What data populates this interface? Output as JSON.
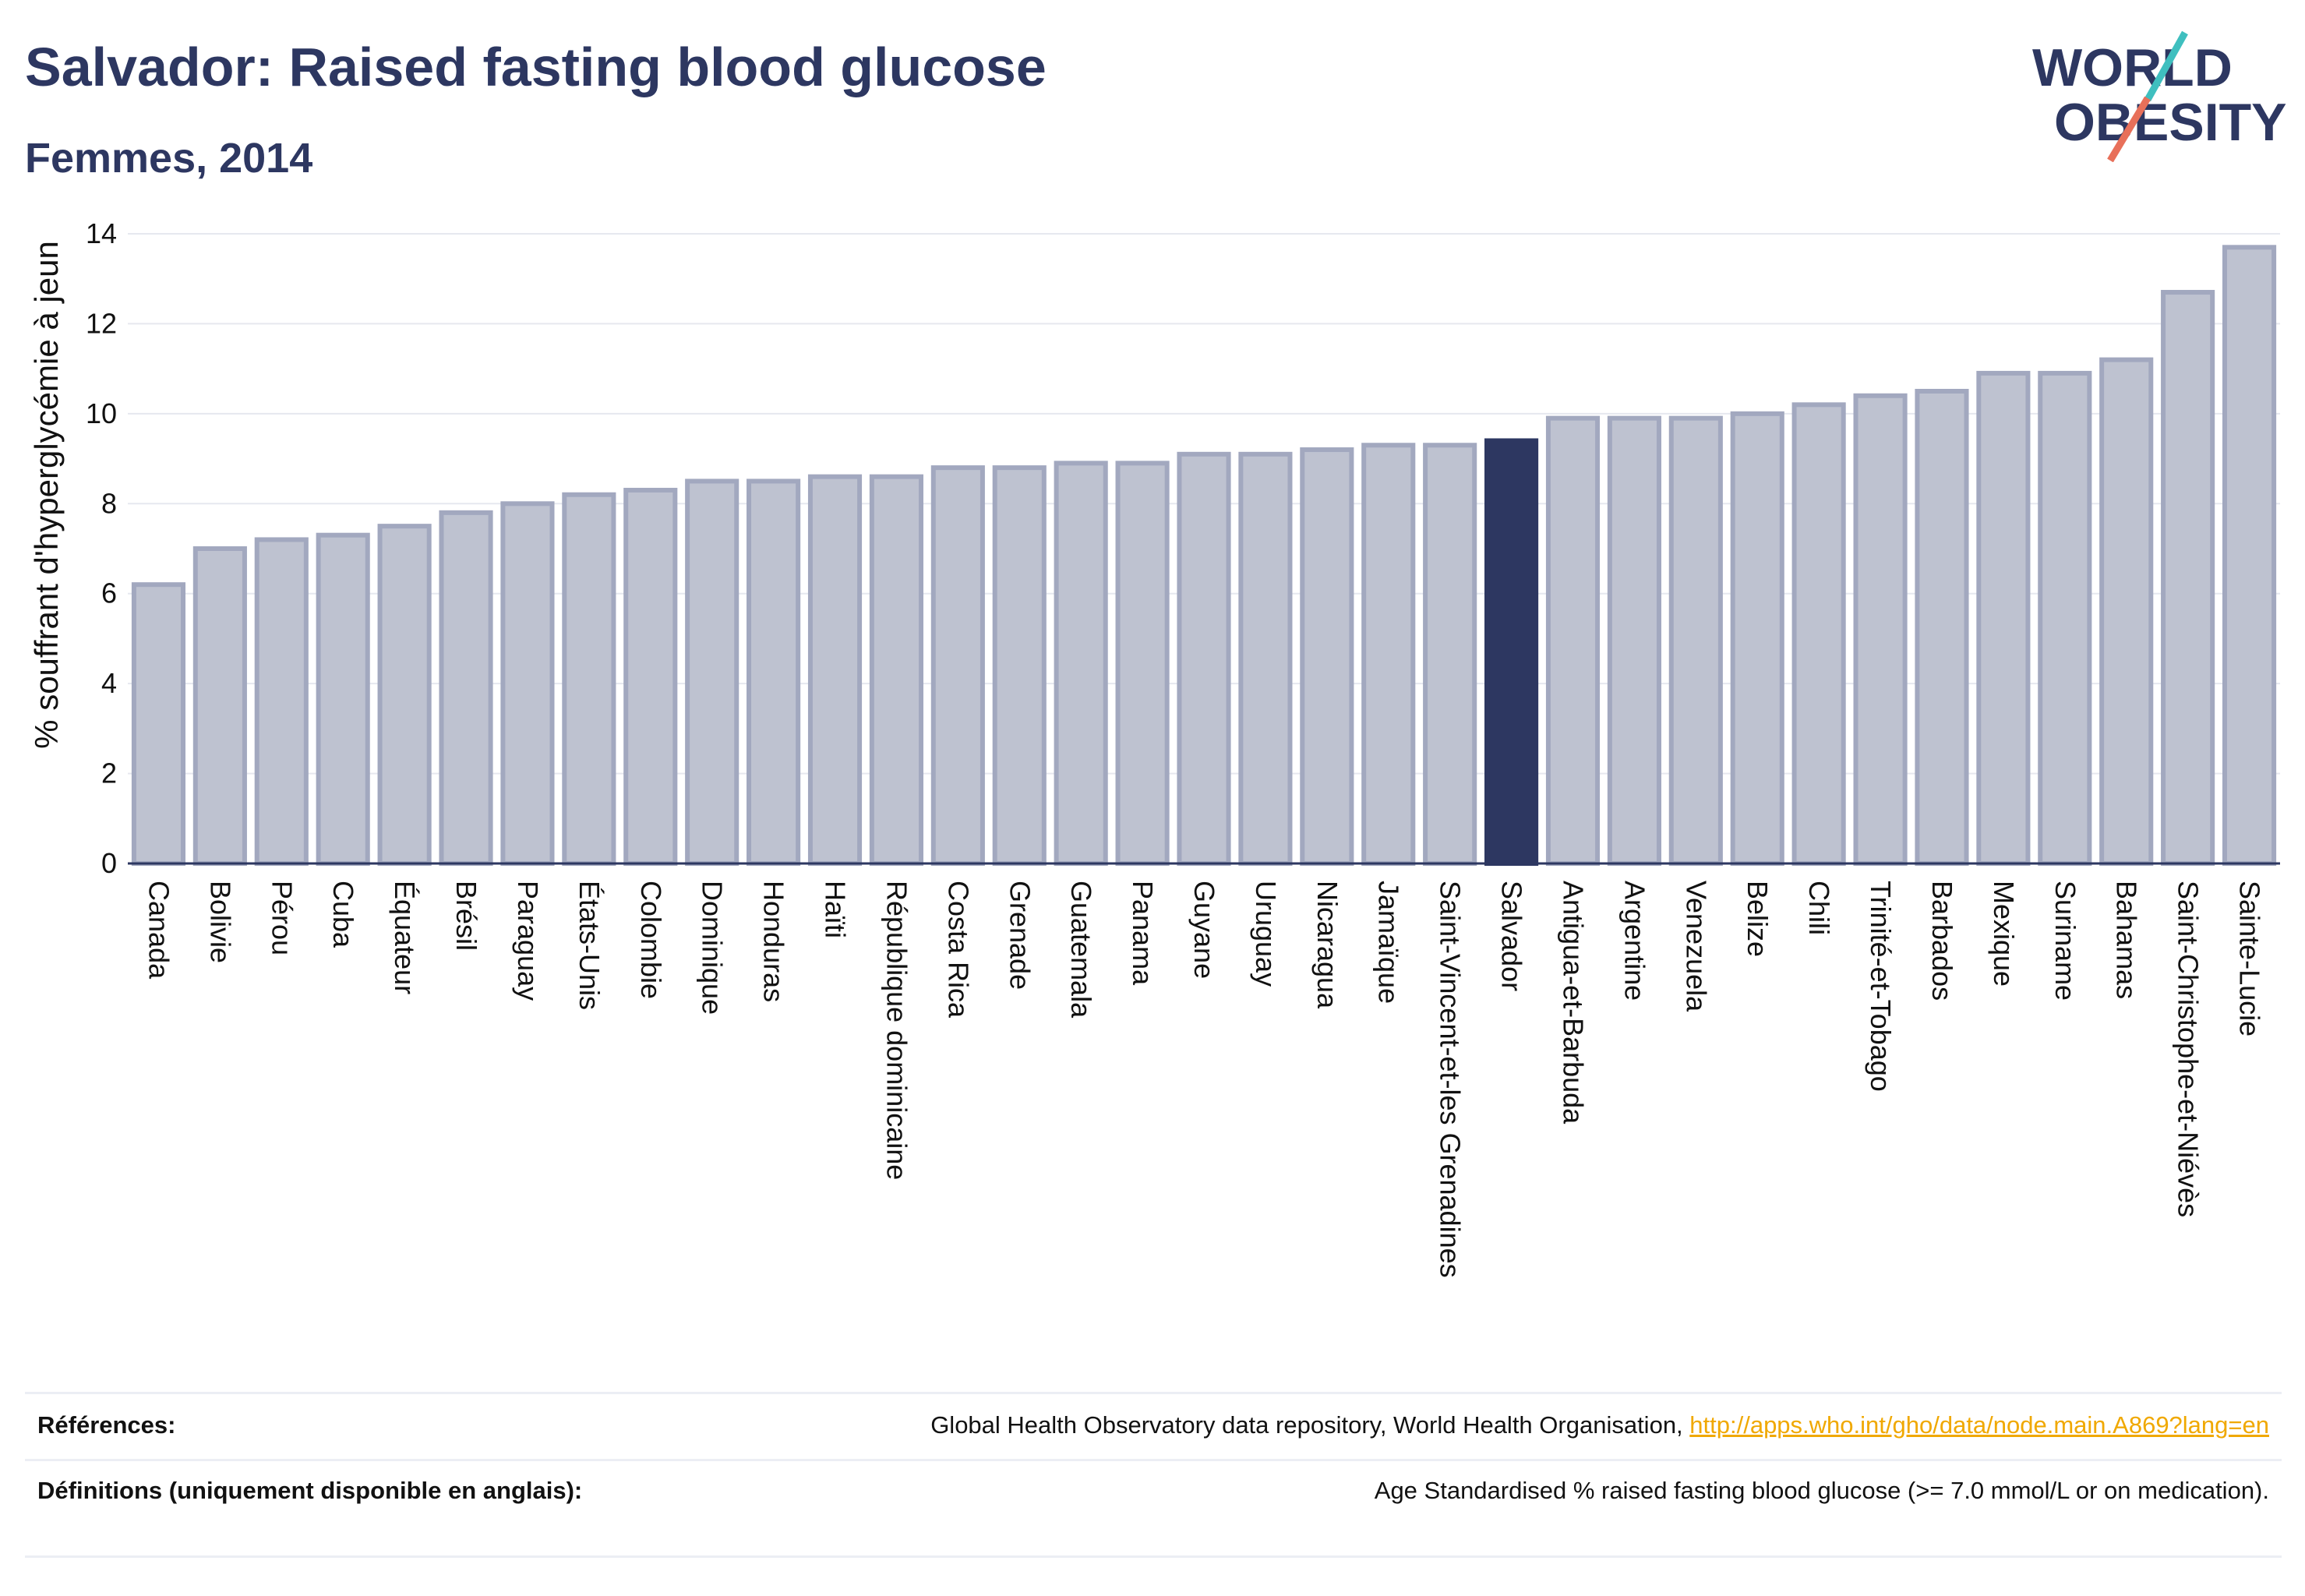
{
  "header": {
    "title": "Salvador: Raised fasting blood glucose",
    "subtitle": "Femmes, 2014"
  },
  "logo": {
    "line1": "WORLD",
    "line2": "OBESITY"
  },
  "colors": {
    "highlight_bar": "#2d3761",
    "default_bar_fill": "#bec2d0",
    "default_bar_stroke": "#a2a8bf",
    "title": "#2d3761",
    "link": "#f0a800",
    "logo_slash_teal": "#3fbfbf",
    "logo_slash_coral": "#e8705a"
  },
  "chart_data": {
    "type": "bar",
    "ylabel": "% souffrant d'hyperglycémie à jeun",
    "xlabel": "",
    "ylim": [
      0,
      14
    ],
    "yticks": [
      0,
      2,
      4,
      6,
      8,
      10,
      12,
      14
    ],
    "grid": true,
    "highlight": "Salvador",
    "categories": [
      "Canada",
      "Bolivie",
      "Pérou",
      "Cuba",
      "Équateur",
      "Brésil",
      "Paraguay",
      "États-Unis",
      "Colombie",
      "Dominique",
      "Honduras",
      "Haïti",
      "République dominicaine",
      "Costa Rica",
      "Grenade",
      "Guatemala",
      "Panama",
      "Guyane",
      "Uruguay",
      "Nicaragua",
      "Jamaïque",
      "Saint-Vincent-et-les Grenadines",
      "Salvador",
      "Antigua-et-Barbuda",
      "Argentine",
      "Venezuela",
      "Belize",
      "Chili",
      "Trinité-et-Tobago",
      "Barbados",
      "Mexique",
      "Suriname",
      "Bahamas",
      "Saint-Christophe-et-Niévès",
      "Sainte-Lucie"
    ],
    "values": [
      6.2,
      7.0,
      7.2,
      7.3,
      7.5,
      7.8,
      8.0,
      8.2,
      8.3,
      8.5,
      8.5,
      8.6,
      8.6,
      8.8,
      8.8,
      8.9,
      8.9,
      9.1,
      9.1,
      9.2,
      9.3,
      9.3,
      9.4,
      9.9,
      9.9,
      9.9,
      10.0,
      10.2,
      10.4,
      10.5,
      10.9,
      10.9,
      11.2,
      12.7,
      13.7
    ]
  },
  "references": {
    "label": "Références:",
    "text": "Global Health Observatory data repository, World Health Organisation, ",
    "link": "http://apps.who.int/gho/data/node.main.A869?lang=en"
  },
  "definitions": {
    "label": "Définitions (uniquement disponible en anglais):",
    "text": "Age Standardised % raised fasting blood glucose (>= 7.0 mmol/L or on medication)."
  }
}
